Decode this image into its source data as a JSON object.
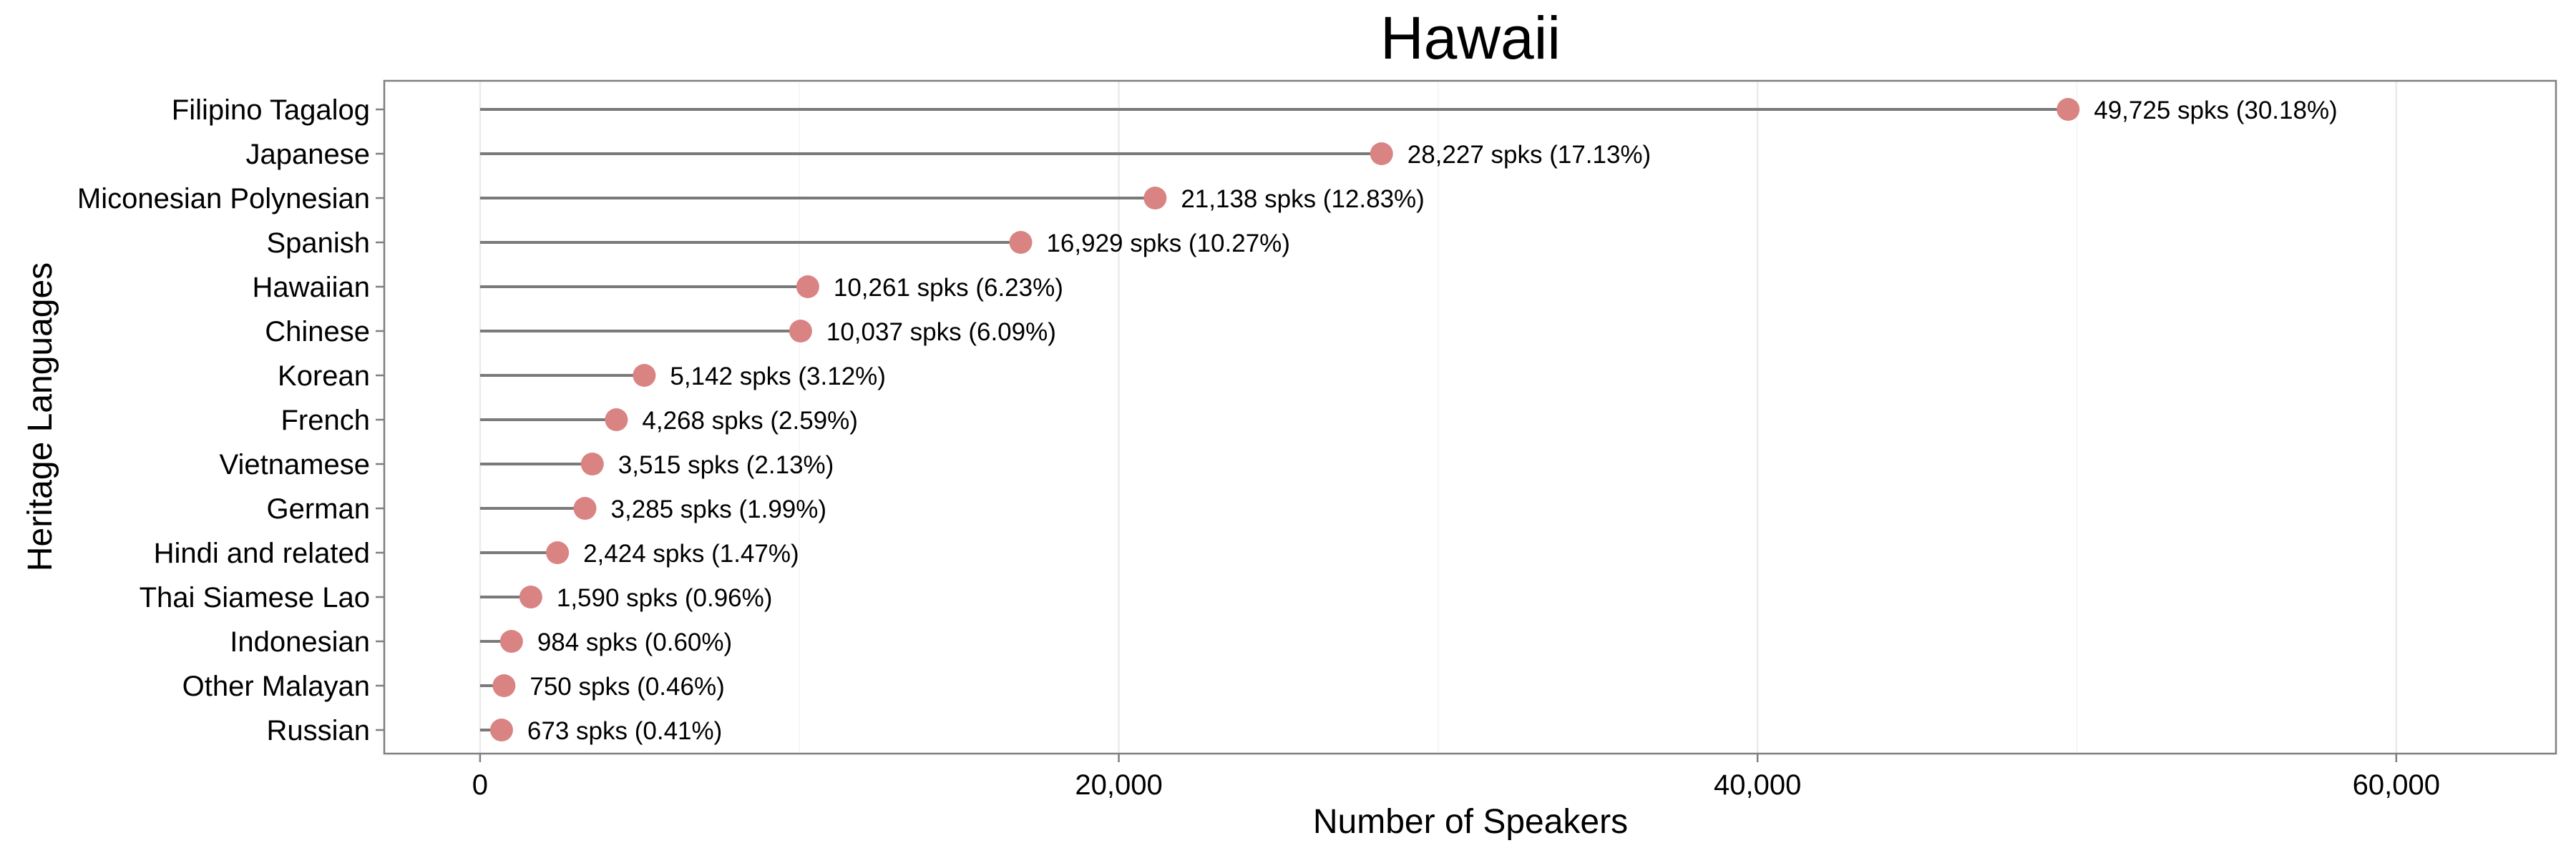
{
  "chart_data": {
    "type": "lollipop",
    "orientation": "horizontal",
    "title": "Hawaii",
    "xlabel": "Number of Speakers",
    "ylabel": "Heritage Languages",
    "xlim": [
      -3000,
      65000
    ],
    "x_ticks": [
      0,
      20000,
      40000,
      60000
    ],
    "x_tick_labels": [
      "0",
      "20,000",
      "40,000",
      "60,000"
    ],
    "grid": true,
    "legend": "none",
    "marker_color": "#d98383",
    "stem_color": "#7a7a7a",
    "categories": [
      "Filipino Tagalog",
      "Japanese",
      "Miconesian Polynesian",
      "Spanish",
      "Hawaiian",
      "Chinese",
      "Korean",
      "French",
      "Vietnamese",
      "German",
      "Hindi and related",
      "Thai Siamese Lao",
      "Indonesian",
      "Other Malayan",
      "Russian"
    ],
    "values": [
      49725,
      28227,
      21138,
      16929,
      10261,
      10037,
      5142,
      4268,
      3515,
      3285,
      2424,
      1590,
      984,
      750,
      673
    ],
    "labels": [
      "49,725 spks (30.18%)",
      "28,227 spks (17.13%)",
      "21,138 spks (12.83%)",
      "16,929 spks (10.27%)",
      "10,261 spks (6.23%)",
      "10,037 spks (6.09%)",
      "5,142 spks (3.12%)",
      "4,268 spks (2.59%)",
      "3,515 spks (2.13%)",
      "3,285 spks (1.99%)",
      "2,424 spks (1.47%)",
      "1,590 spks (0.96%)",
      "984 spks (0.60%)",
      "750 spks (0.46%)",
      "673 spks (0.41%)"
    ]
  }
}
